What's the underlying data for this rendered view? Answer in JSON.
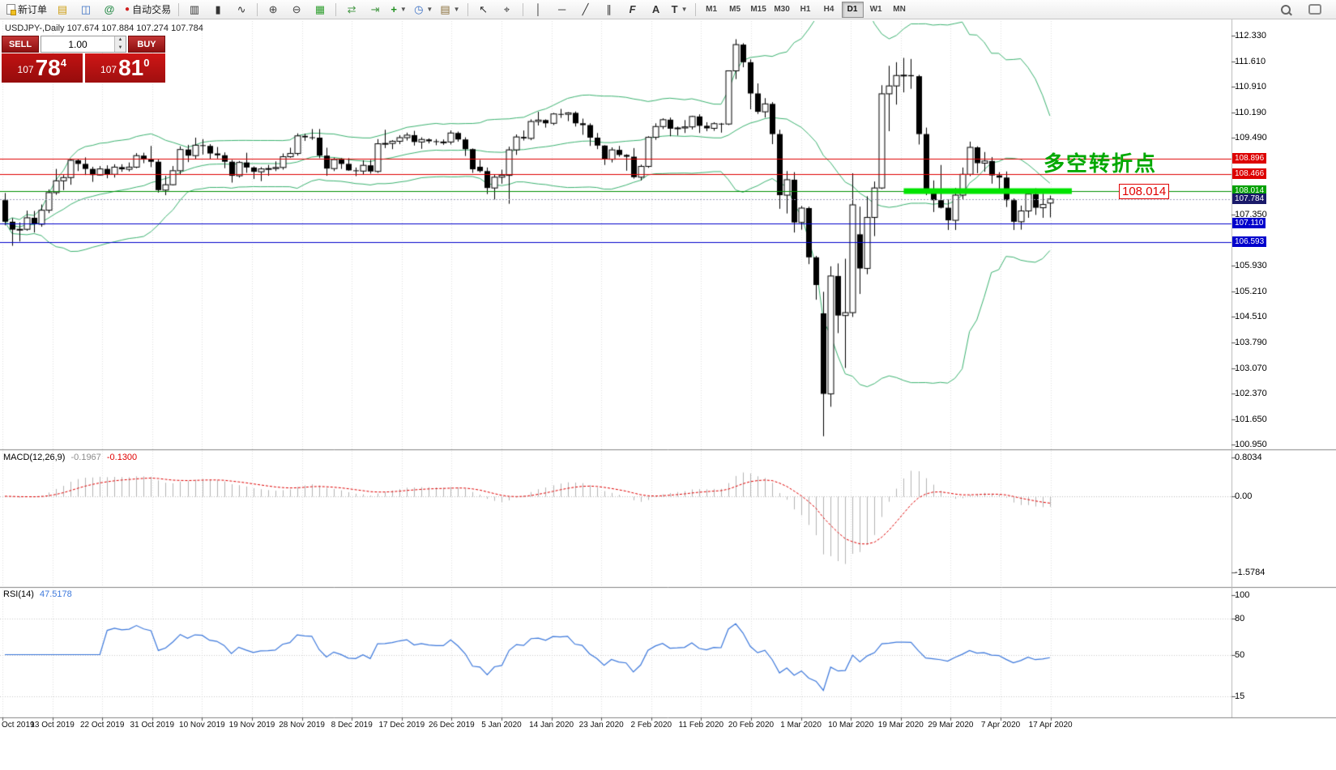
{
  "toolbar": {
    "new_order": "新订单",
    "autotrading": "自动交易",
    "timeframes": [
      "M1",
      "M5",
      "M15",
      "M30",
      "H1",
      "H4",
      "D1",
      "W1",
      "MN"
    ],
    "active_timeframe": "D1"
  },
  "window": {
    "symbol_title": "USDJPY-,Daily 107.674 107.884 107.274 107.784"
  },
  "trade_panel": {
    "sell_label": "SELL",
    "buy_label": "BUY",
    "volume": "1.00",
    "sell_price_int": "107",
    "sell_price_main": "78",
    "sell_price_sup": "4",
    "buy_price_int": "107",
    "buy_price_main": "81",
    "buy_price_sup": "0"
  },
  "annotation": {
    "text": "多空转折点",
    "color": "#00a800"
  },
  "price_tag": {
    "text": "108.014"
  },
  "price_axis": {
    "ticks": [
      "112.330",
      "111.610",
      "110.910",
      "110.190",
      "109.490",
      "107.350",
      "105.930",
      "105.210",
      "104.510",
      "103.790",
      "103.070",
      "102.370",
      "101.650",
      "100.950"
    ],
    "tick_values": [
      112.33,
      111.61,
      110.91,
      110.19,
      109.49,
      107.35,
      105.93,
      105.21,
      104.51,
      103.79,
      103.07,
      102.37,
      101.65,
      100.95
    ],
    "line_labels": [
      {
        "text": "108.896",
        "value": 108.896,
        "bg": "#dd0000"
      },
      {
        "text": "108.466",
        "value": 108.466,
        "bg": "#dd0000"
      },
      {
        "text": "108.014",
        "value": 108.014,
        "bg": "#00a000"
      },
      {
        "text": "107.784",
        "value": 107.784,
        "bg": "#1a1a6a"
      },
      {
        "text": "107.110",
        "value": 107.11,
        "bg": "#0000cc"
      },
      {
        "text": "106.593",
        "value": 106.593,
        "bg": "#0000cc"
      }
    ]
  },
  "hlines": [
    {
      "value": 108.896,
      "color": "#e00000"
    },
    {
      "value": 108.466,
      "color": "#e00000"
    },
    {
      "value": 108.014,
      "color": "#008f00"
    },
    {
      "value": 107.11,
      "color": "#0000cc"
    },
    {
      "value": 106.593,
      "color": "#0000cc"
    }
  ],
  "current_price": 107.784,
  "green_segment": {
    "value": 108.014,
    "from_candle": 123,
    "to_candle": 146,
    "color": "#00e400"
  },
  "macd": {
    "title": "MACD(12,26,9)",
    "main_value": "-0.1967",
    "signal_value": "-0.1300",
    "axis": [
      "0.8034",
      "0.00",
      "-1.5784"
    ],
    "axis_values": [
      0.8034,
      0,
      -1.5784
    ],
    "main_color": "#b4b4b4",
    "signal_color": "#e00000"
  },
  "rsi": {
    "title": "RSI(14)",
    "value": "47.5178",
    "axis": [
      "100",
      "80",
      "50",
      "15"
    ],
    "axis_values": [
      100,
      80,
      50,
      15
    ],
    "levels": [
      80,
      50,
      15
    ],
    "color": "#3c78dc"
  },
  "dates": [
    "Oct 2019",
    "13 Oct 2019",
    "22 Oct 2019",
    "31 Oct 2019",
    "10 Nov 2019",
    "19 Nov 2019",
    "28 Nov 2019",
    "8 Dec 2019",
    "17 Dec 2019",
    "26 Dec 2019",
    "5 Jan 2020",
    "14 Jan 2020",
    "23 Jan 2020",
    "2 Feb 2020",
    "11 Feb 2020",
    "20 Feb 2020",
    "1 Mar 2020",
    "10 Mar 2020",
    "19 Mar 2020",
    "29 Mar 2020",
    "7 Apr 2020",
    "17 Apr 2020"
  ],
  "chart_data": {
    "type": "candlestick",
    "symbol": "USDJPY",
    "period": "Daily",
    "y_axis_range": [
      100.95,
      112.33
    ],
    "indicators": {
      "bollinger_period": 20,
      "bollinger_deviation": 2,
      "macd": [
        12,
        26,
        9
      ],
      "rsi": 14
    },
    "ohlc": [
      [
        107.75,
        107.95,
        107.05,
        107.15
      ],
      [
        107.15,
        107.25,
        106.48,
        106.93
      ],
      [
        106.93,
        107.13,
        106.6,
        106.94
      ],
      [
        106.94,
        107.46,
        106.9,
        107.26
      ],
      [
        107.26,
        107.45,
        106.85,
        107.08
      ],
      [
        107.08,
        107.63,
        107.01,
        107.47
      ],
      [
        107.47,
        108.05,
        107.39,
        107.96
      ],
      [
        107.96,
        108.62,
        107.9,
        108.29
      ],
      [
        108.29,
        108.45,
        108.03,
        108.38
      ],
      [
        108.38,
        108.9,
        108.18,
        108.86
      ],
      [
        108.86,
        108.9,
        108.56,
        108.76
      ],
      [
        108.76,
        108.94,
        108.45,
        108.62
      ],
      [
        108.62,
        108.68,
        108.26,
        108.45
      ],
      [
        108.45,
        108.7,
        108.44,
        108.62
      ],
      [
        108.62,
        108.72,
        108.36,
        108.47
      ],
      [
        108.47,
        108.75,
        108.38,
        108.67
      ],
      [
        108.67,
        108.75,
        108.54,
        108.61
      ],
      [
        108.61,
        108.8,
        108.55,
        108.67
      ],
      [
        108.67,
        109.06,
        108.64,
        108.99
      ],
      [
        108.99,
        109.07,
        108.78,
        108.88
      ],
      [
        108.88,
        109.26,
        108.67,
        108.82
      ],
      [
        108.82,
        108.88,
        107.96,
        108.03
      ],
      [
        108.03,
        108.43,
        107.89,
        108.18
      ],
      [
        108.18,
        108.7,
        108.16,
        108.57
      ],
      [
        108.57,
        109.25,
        108.47,
        109.16
      ],
      [
        109.16,
        109.29,
        108.81,
        108.99
      ],
      [
        108.99,
        109.49,
        108.9,
        109.28
      ],
      [
        109.28,
        109.45,
        109.02,
        109.26
      ],
      [
        109.26,
        109.31,
        108.89,
        109.05
      ],
      [
        109.05,
        109.23,
        108.91,
        109.0
      ],
      [
        109.0,
        109.08,
        108.64,
        108.82
      ],
      [
        108.82,
        108.87,
        108.24,
        108.43
      ],
      [
        108.43,
        108.84,
        108.38,
        108.8
      ],
      [
        108.8,
        109.07,
        108.51,
        108.66
      ],
      [
        108.66,
        108.69,
        108.34,
        108.54
      ],
      [
        108.54,
        108.67,
        108.28,
        108.62
      ],
      [
        108.62,
        108.73,
        108.43,
        108.63
      ],
      [
        108.63,
        108.83,
        108.56,
        108.66
      ],
      [
        108.66,
        109.05,
        108.6,
        108.96
      ],
      [
        108.96,
        109.21,
        108.93,
        109.05
      ],
      [
        109.05,
        109.61,
        108.99,
        109.54
      ],
      [
        109.54,
        109.6,
        109.4,
        109.5
      ],
      [
        109.5,
        109.73,
        109.43,
        109.49
      ],
      [
        109.49,
        109.73,
        108.92,
        108.99
      ],
      [
        108.99,
        109.21,
        108.43,
        108.63
      ],
      [
        108.63,
        108.93,
        108.56,
        108.88
      ],
      [
        108.88,
        108.92,
        108.62,
        108.76
      ],
      [
        108.76,
        108.92,
        108.57,
        108.58
      ],
      [
        108.58,
        108.66,
        108.42,
        108.56
      ],
      [
        108.56,
        108.86,
        108.47,
        108.72
      ],
      [
        108.72,
        108.87,
        108.49,
        108.55
      ],
      [
        108.55,
        109.45,
        108.51,
        109.32
      ],
      [
        109.32,
        109.71,
        109.2,
        109.33
      ],
      [
        109.33,
        109.42,
        109.17,
        109.39
      ],
      [
        109.39,
        109.56,
        109.31,
        109.49
      ],
      [
        109.49,
        109.63,
        109.41,
        109.56
      ],
      [
        109.56,
        109.68,
        109.27,
        109.37
      ],
      [
        109.37,
        109.5,
        109.18,
        109.44
      ],
      [
        109.44,
        109.47,
        109.33,
        109.39
      ],
      [
        109.39,
        109.45,
        109.28,
        109.37
      ],
      [
        109.37,
        109.44,
        109.29,
        109.37
      ],
      [
        109.37,
        109.69,
        109.3,
        109.62
      ],
      [
        109.62,
        109.66,
        109.38,
        109.44
      ],
      [
        109.44,
        109.5,
        108.98,
        109.17
      ],
      [
        109.17,
        109.19,
        108.51,
        108.61
      ],
      [
        108.68,
        108.87,
        108.52,
        108.56
      ],
      [
        108.56,
        108.66,
        107.92,
        108.09
      ],
      [
        108.09,
        108.47,
        107.77,
        108.39
      ],
      [
        108.39,
        108.6,
        108.21,
        108.44
      ],
      [
        108.44,
        109.24,
        107.65,
        109.15
      ],
      [
        109.15,
        109.58,
        109.01,
        109.51
      ],
      [
        109.51,
        109.69,
        109.41,
        109.47
      ],
      [
        109.47,
        110.0,
        109.42,
        109.94
      ],
      [
        109.94,
        110.21,
        109.83,
        109.98
      ],
      [
        109.98,
        110.0,
        109.77,
        109.89
      ],
      [
        109.89,
        110.18,
        109.84,
        110.15
      ],
      [
        110.15,
        110.29,
        110.04,
        110.14
      ],
      [
        110.14,
        110.2,
        109.95,
        110.18
      ],
      [
        110.18,
        110.22,
        109.8,
        109.89
      ],
      [
        109.89,
        110.02,
        109.57,
        109.84
      ],
      [
        109.84,
        109.89,
        109.26,
        109.49
      ],
      [
        109.49,
        109.62,
        109.17,
        109.27
      ],
      [
        109.27,
        109.28,
        108.73,
        108.89
      ],
      [
        108.89,
        109.22,
        108.8,
        109.15
      ],
      [
        109.15,
        109.26,
        108.96,
        109.01
      ],
      [
        109.01,
        109.03,
        108.57,
        108.96
      ],
      [
        108.96,
        109.2,
        108.35,
        108.39
      ],
      [
        108.39,
        108.74,
        108.3,
        108.69
      ],
      [
        108.69,
        109.53,
        108.65,
        109.5
      ],
      [
        109.5,
        109.89,
        109.43,
        109.8
      ],
      [
        109.8,
        110.03,
        109.73,
        109.99
      ],
      [
        109.99,
        110.05,
        109.53,
        109.74
      ],
      [
        109.74,
        109.8,
        109.55,
        109.76
      ],
      [
        109.76,
        109.98,
        109.62,
        109.79
      ],
      [
        109.79,
        110.1,
        109.72,
        110.08
      ],
      [
        110.08,
        110.14,
        109.62,
        109.82
      ],
      [
        109.82,
        109.92,
        109.67,
        109.75
      ],
      [
        109.75,
        109.92,
        109.68,
        109.88
      ],
      [
        109.88,
        109.9,
        109.63,
        109.87
      ],
      [
        109.87,
        111.36,
        109.84,
        111.35
      ],
      [
        111.35,
        112.23,
        111.12,
        112.08
      ],
      [
        112.08,
        112.12,
        111.45,
        111.59
      ],
      [
        111.59,
        111.67,
        110.28,
        110.72
      ],
      [
        110.72,
        111.0,
        110.15,
        110.21
      ],
      [
        110.21,
        110.59,
        110.05,
        110.43
      ],
      [
        110.43,
        110.48,
        109.31,
        109.59
      ],
      [
        109.59,
        109.71,
        107.51,
        107.89
      ],
      [
        107.89,
        108.56,
        107.38,
        108.32
      ],
      [
        108.32,
        108.53,
        106.85,
        107.13
      ],
      [
        107.13,
        107.59,
        106.93,
        107.53
      ],
      [
        107.53,
        107.57,
        105.97,
        106.16
      ],
      [
        106.16,
        106.2,
        104.98,
        105.39
      ],
      [
        104.6,
        105.2,
        101.18,
        102.36
      ],
      [
        102.36,
        105.91,
        102.0,
        105.64
      ],
      [
        105.64,
        105.99,
        104.05,
        104.54
      ],
      [
        104.54,
        106.12,
        103.08,
        104.62
      ],
      [
        104.62,
        108.5,
        104.5,
        107.62
      ],
      [
        106.8,
        107.57,
        105.14,
        105.85
      ],
      [
        105.85,
        107.86,
        105.69,
        107.27
      ],
      [
        107.27,
        108.27,
        106.75,
        108.09
      ],
      [
        108.09,
        110.95,
        108.06,
        110.71
      ],
      [
        110.71,
        111.49,
        109.67,
        110.93
      ],
      [
        110.93,
        111.59,
        110.41,
        111.22
      ],
      [
        111.22,
        111.71,
        110.75,
        111.23
      ],
      [
        111.23,
        111.68,
        110.85,
        111.2
      ],
      [
        111.2,
        111.24,
        109.3,
        109.59
      ],
      [
        109.59,
        109.77,
        107.89,
        107.94
      ],
      [
        107.94,
        108.3,
        107.42,
        107.75
      ],
      [
        107.75,
        108.73,
        107.52,
        107.54
      ],
      [
        107.54,
        107.77,
        106.92,
        107.19
      ],
      [
        107.19,
        108.09,
        106.92,
        107.89
      ],
      [
        107.89,
        108.66,
        107.78,
        108.47
      ],
      [
        108.47,
        109.38,
        108.42,
        109.22
      ],
      [
        109.22,
        109.25,
        108.5,
        108.78
      ],
      [
        108.78,
        109.09,
        108.54,
        108.84
      ],
      [
        108.84,
        108.95,
        108.21,
        108.44
      ],
      [
        108.44,
        108.53,
        107.95,
        108.38
      ],
      [
        108.38,
        108.55,
        107.56,
        107.75
      ],
      [
        107.75,
        107.8,
        106.92,
        107.15
      ],
      [
        107.15,
        107.6,
        106.93,
        107.45
      ],
      [
        107.45,
        107.98,
        107.26,
        107.92
      ],
      [
        107.92,
        108.08,
        107.34,
        107.54
      ],
      [
        107.54,
        107.93,
        107.26,
        107.63
      ],
      [
        107.67,
        107.88,
        107.27,
        107.78
      ]
    ]
  }
}
